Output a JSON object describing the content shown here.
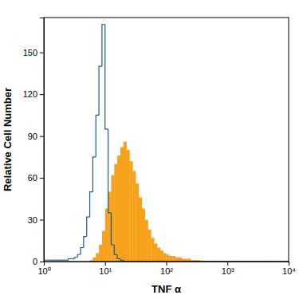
{
  "chart_data": {
    "type": "histogram",
    "x_label": "TNF α",
    "y_label": "Relative Cell Number",
    "log": "x",
    "grid": false,
    "xlim": [
      1,
      10000
    ],
    "xticks": [
      {
        "value": 1,
        "label": "10⁰"
      },
      {
        "value": 10,
        "label": "10¹"
      },
      {
        "value": 100,
        "label": "10²"
      },
      {
        "value": 1000,
        "label": "10³"
      },
      {
        "value": 10000,
        "label": "10⁴"
      }
    ],
    "ylim": [
      0,
      175
    ],
    "yticks": [
      0,
      30,
      60,
      90,
      120,
      150
    ],
    "bins": [
      1,
      1.122,
      1.259,
      1.413,
      1.585,
      1.778,
      1.995,
      2.239,
      2.512,
      2.818,
      3.162,
      3.548,
      3.981,
      4.467,
      5.012,
      5.623,
      6.31,
      7.079,
      7.943,
      8.913,
      10,
      11.22,
      12.59,
      14.13,
      15.85,
      17.78,
      19.95,
      22.39,
      25.12,
      28.18,
      31.62,
      35.48,
      39.81,
      44.67,
      50.12,
      56.23,
      63.1,
      70.79,
      79.43,
      89.13,
      100,
      112.2,
      125.9,
      141.3,
      158.5,
      177.8,
      199.5,
      223.9,
      251.2,
      281.8,
      316.2,
      354.8,
      398.1,
      446.7,
      501.2,
      562.3,
      631,
      707.9,
      794.3,
      891.3,
      1000,
      1122,
      1259,
      1413,
      1585,
      1778,
      1995,
      2239,
      2512,
      2818,
      3162,
      3548,
      3981,
      4467,
      5012,
      5623,
      6310,
      7079,
      7943,
      8913,
      10000
    ],
    "series": [
      {
        "color": "#1d5a8c",
        "type": "line",
        "values": [
          1,
          1,
          1,
          1,
          1,
          1,
          1,
          1,
          2,
          2,
          3,
          5,
          10,
          18,
          32,
          50,
          75,
          105,
          140,
          170,
          95,
          35,
          12,
          5,
          2,
          1,
          0,
          0,
          0,
          0,
          0,
          0,
          0,
          0,
          0,
          0,
          0,
          0,
          0,
          0,
          0,
          0,
          0,
          0,
          0,
          0,
          0,
          0,
          0,
          0,
          0,
          0,
          0,
          0,
          0,
          0,
          0,
          0,
          0,
          0,
          0,
          0,
          0,
          0,
          0,
          0,
          0,
          0,
          0,
          0,
          0,
          0,
          0,
          0,
          0,
          0,
          0,
          0,
          0,
          0
        ]
      },
      {
        "color": "#f7a21b",
        "type": "bar",
        "values": [
          0,
          0,
          0,
          0,
          0,
          0,
          0,
          0,
          0,
          0,
          0,
          0,
          0,
          0,
          0,
          1,
          3,
          6,
          12,
          22,
          38,
          50,
          62,
          70,
          76,
          82,
          86,
          80,
          72,
          65,
          56,
          46,
          38,
          30,
          23,
          17,
          13,
          10,
          8,
          6,
          5,
          4,
          4,
          3,
          3,
          2,
          2,
          2,
          1,
          1,
          1,
          0,
          0,
          0,
          0,
          0,
          0,
          0,
          0,
          0,
          0,
          0,
          0,
          0,
          0,
          0,
          0,
          0,
          0,
          0,
          0,
          0,
          0,
          0,
          0,
          0,
          0,
          0,
          0,
          0
        ]
      }
    ]
  }
}
